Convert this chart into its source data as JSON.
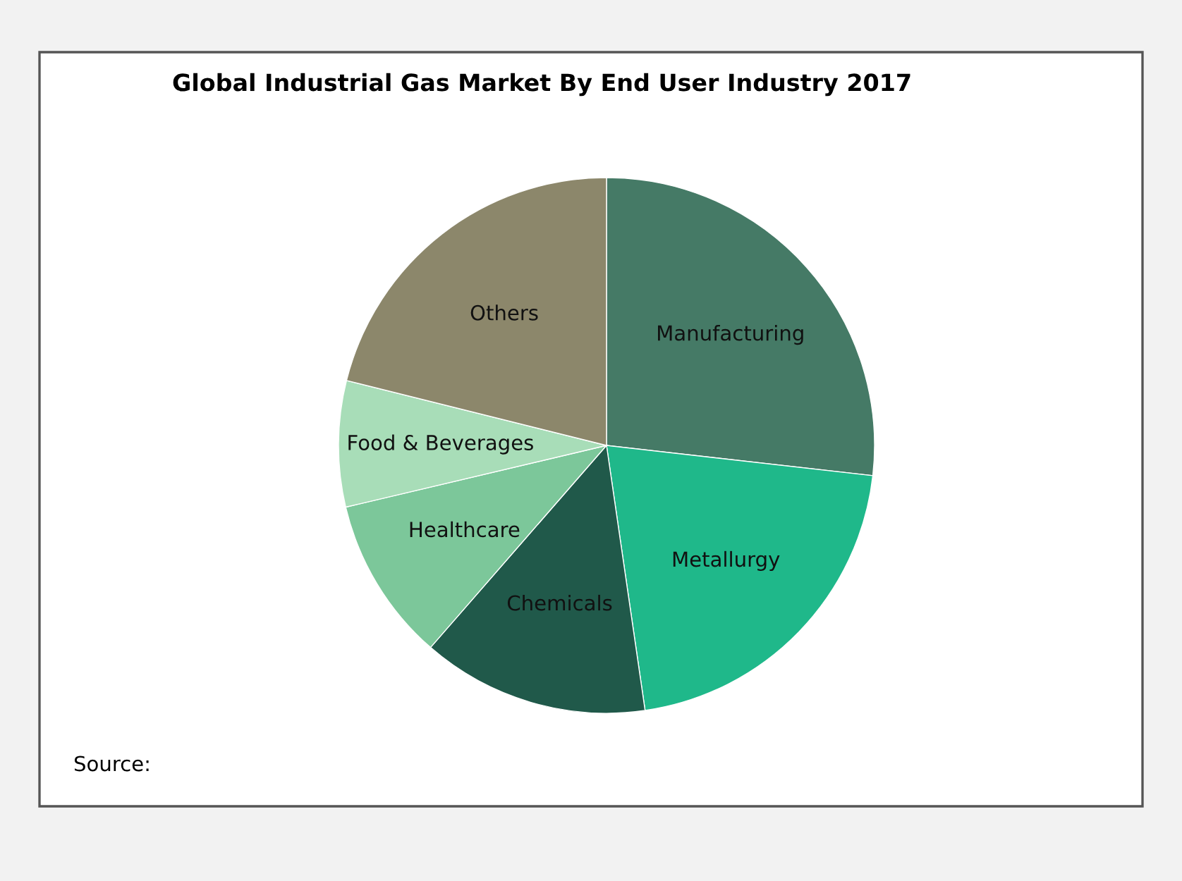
{
  "chart_data": {
    "type": "pie",
    "title": "Global Industrial Gas Market By End User Industry 2017",
    "categories": [
      "Manufacturing",
      "Metallurgy",
      "Chemicals",
      "Healthcare",
      "Food & Beverages",
      "Others"
    ],
    "values": [
      26.8,
      20.9,
      13.7,
      9.9,
      7.6,
      21.1
    ],
    "colors": [
      "#457a66",
      "#1fb88a",
      "#20594a",
      "#7cc79a",
      "#a8ddb8",
      "#8c876b"
    ],
    "annotations": [
      "Source:"
    ],
    "legend": false
  }
}
